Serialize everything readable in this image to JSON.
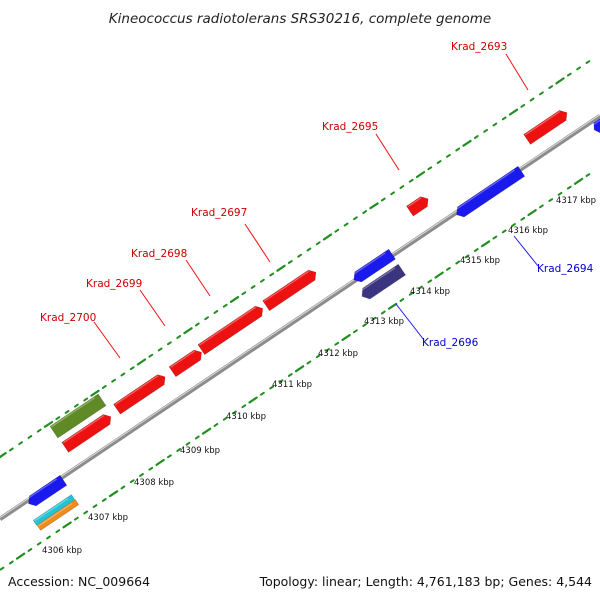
{
  "header": {
    "title": "Kineococcus radiotolerans SRS30216, complete genome"
  },
  "footer": {
    "accession": "Accession: NC_009664",
    "summary": "Topology: linear; Length: 4,761,183 bp; Genes: 4,544"
  },
  "colors": {
    "backbone": "#8c8c8c",
    "tick": "#1f8f1f",
    "forward_gene": "#ee1111",
    "reverse_gene": "#1a1aee",
    "dark_reverse_gene": "#3b3480",
    "olive_feature": "#5f8a25",
    "cyan_feature": "#22c4d4",
    "orange_feature": "#f08c1a",
    "forward_label": "#cc0000",
    "reverse_label": "#0000cc"
  },
  "scale": {
    "kbp_labels": [
      "4306 kbp",
      "4307 kbp",
      "4308 kbp",
      "4309 kbp",
      "4310 kbp",
      "4311 kbp",
      "4312 kbp",
      "4313 kbp",
      "4314 kbp",
      "4315 kbp",
      "4316 kbp",
      "4317 kbp"
    ]
  },
  "genes": {
    "forward_labels": [
      "Krad_2693",
      "Krad_2695",
      "Krad_2697",
      "Krad_2698",
      "Krad_2699",
      "Krad_2700"
    ],
    "reverse_labels": [
      "Krad_2694",
      "Krad_2696"
    ]
  }
}
